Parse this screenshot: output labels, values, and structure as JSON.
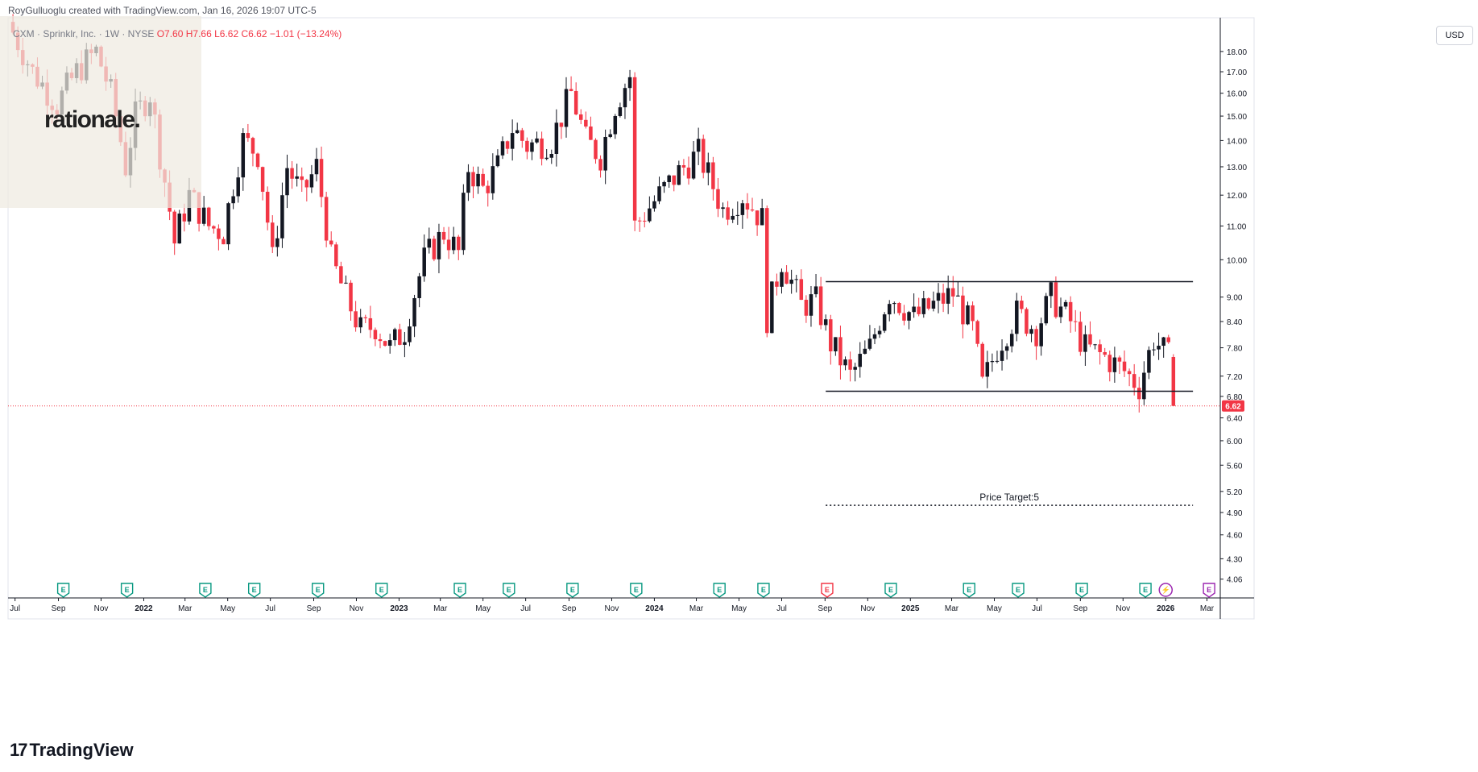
{
  "header": {
    "created_by": "RoyGulluoglu created with TradingView.com, Jan 16, 2026 19:07 UTC-5"
  },
  "legend": {
    "symbol": "CXM · Sprinklr, Inc. · 1W · NYSE",
    "open": "O7.60",
    "high": "H7.66",
    "low": "L6.62",
    "close": "C6.62",
    "change": "−1.01 (−13.24%)"
  },
  "logo": {
    "text": "rationale."
  },
  "currency_button": "USD",
  "brand": {
    "mark": "17",
    "name": "TradingView"
  },
  "colors": {
    "up": "#131722",
    "down": "#f23645",
    "grid": "#f0f3fa",
    "axis_text": "#131722",
    "earnings_green": "#089981",
    "earnings_red": "#f23645",
    "dividend_purple": "#9c27b0"
  },
  "chart_data": {
    "type": "candlestick",
    "title": "CXM · Sprinklr, Inc. · 1W · NYSE",
    "timeframe": "1W",
    "scale": "log",
    "ylim": [
      3.85,
      19.8
    ],
    "y_ticks": [
      "4.06",
      "4.30",
      "4.60",
      "4.90",
      "5.20",
      "5.60",
      "6.00",
      "6.40",
      "6.80",
      "7.20",
      "7.80",
      "8.40",
      "9.00",
      "10.00",
      "11.00",
      "12.00",
      "13.00",
      "14.00",
      "15.00",
      "16.00",
      "17.00",
      "18.00"
    ],
    "x_ticks": [
      {
        "label": "Jul",
        "date": "2021-07-01"
      },
      {
        "label": "Sep",
        "date": "2021-09-01"
      },
      {
        "label": "Nov",
        "date": "2021-11-01"
      },
      {
        "label": "2022",
        "date": "2022-01-01",
        "bold": true
      },
      {
        "label": "Mar",
        "date": "2022-03-01"
      },
      {
        "label": "May",
        "date": "2022-05-01"
      },
      {
        "label": "Jul",
        "date": "2022-07-01"
      },
      {
        "label": "Sep",
        "date": "2022-09-01"
      },
      {
        "label": "Nov",
        "date": "2022-11-01"
      },
      {
        "label": "2023",
        "date": "2023-01-01",
        "bold": true
      },
      {
        "label": "Mar",
        "date": "2023-03-01"
      },
      {
        "label": "May",
        "date": "2023-05-01"
      },
      {
        "label": "Jul",
        "date": "2023-07-01"
      },
      {
        "label": "Sep",
        "date": "2023-09-01"
      },
      {
        "label": "Nov",
        "date": "2023-11-01"
      },
      {
        "label": "2024",
        "date": "2024-01-01",
        "bold": true
      },
      {
        "label": "Mar",
        "date": "2024-03-01"
      },
      {
        "label": "May",
        "date": "2024-05-01"
      },
      {
        "label": "Jul",
        "date": "2024-07-01"
      },
      {
        "label": "Sep",
        "date": "2024-09-01"
      },
      {
        "label": "Nov",
        "date": "2024-11-01"
      },
      {
        "label": "2025",
        "date": "2025-01-01",
        "bold": true
      },
      {
        "label": "Mar",
        "date": "2025-03-01"
      },
      {
        "label": "May",
        "date": "2025-05-01"
      },
      {
        "label": "Jul",
        "date": "2025-07-01"
      },
      {
        "label": "Sep",
        "date": "2025-09-01"
      },
      {
        "label": "Nov",
        "date": "2025-11-01"
      },
      {
        "label": "2026",
        "date": "2026-01-01",
        "bold": true
      },
      {
        "label": "Mar",
        "date": "2026-03-01"
      }
    ],
    "last_price": 6.62,
    "last_price_label": "6.62",
    "horizontal_lines": [
      {
        "name": "range-top",
        "value": 9.4,
        "from": "2024-09-02",
        "to": "2026-02-09",
        "style": "solid"
      },
      {
        "name": "range-bottom",
        "value": 6.9,
        "from": "2024-09-02",
        "to": "2026-02-09",
        "style": "solid"
      },
      {
        "name": "price-target",
        "value": 5.0,
        "from": "2024-09-02",
        "to": "2026-02-09",
        "style": "dotted",
        "label": "Price Target:5"
      }
    ],
    "events": [
      {
        "type": "earnings",
        "date": "2021-09-08",
        "color": "green",
        "glyph": "E"
      },
      {
        "type": "earnings",
        "date": "2021-12-08",
        "color": "green",
        "glyph": "E"
      },
      {
        "type": "earnings",
        "date": "2022-03-30",
        "color": "green",
        "glyph": "E"
      },
      {
        "type": "earnings",
        "date": "2022-06-08",
        "color": "green",
        "glyph": "E"
      },
      {
        "type": "earnings",
        "date": "2022-09-07",
        "color": "green",
        "glyph": "E"
      },
      {
        "type": "earnings",
        "date": "2022-12-07",
        "color": "green",
        "glyph": "E"
      },
      {
        "type": "earnings",
        "date": "2023-03-29",
        "color": "green",
        "glyph": "E"
      },
      {
        "type": "earnings",
        "date": "2023-06-07",
        "color": "green",
        "glyph": "E"
      },
      {
        "type": "earnings",
        "date": "2023-09-06",
        "color": "green",
        "glyph": "E"
      },
      {
        "type": "earnings",
        "date": "2023-12-06",
        "color": "green",
        "glyph": "E"
      },
      {
        "type": "earnings",
        "date": "2024-04-03",
        "color": "green",
        "glyph": "E"
      },
      {
        "type": "earnings",
        "date": "2024-06-05",
        "color": "green",
        "glyph": "E"
      },
      {
        "type": "earnings",
        "date": "2024-09-04",
        "color": "red",
        "glyph": "E"
      },
      {
        "type": "earnings",
        "date": "2024-12-04",
        "color": "green",
        "glyph": "E"
      },
      {
        "type": "earnings",
        "date": "2025-03-26",
        "color": "green",
        "glyph": "E"
      },
      {
        "type": "earnings",
        "date": "2025-06-04",
        "color": "green",
        "glyph": "E"
      },
      {
        "type": "earnings",
        "date": "2025-09-03",
        "color": "green",
        "glyph": "E"
      },
      {
        "type": "earnings",
        "date": "2025-12-03",
        "color": "green",
        "glyph": "E"
      },
      {
        "type": "dividend",
        "date": "2026-01-01",
        "color": "purple",
        "glyph": "⚡"
      },
      {
        "type": "earnings",
        "date": "2026-03-04",
        "color": "purple",
        "glyph": "E"
      }
    ],
    "anchors": [
      {
        "date": "2021-06-28",
        "close": 19.0
      },
      {
        "date": "2021-07-26",
        "close": 17.0
      },
      {
        "date": "2021-08-30",
        "close": 15.5
      },
      {
        "date": "2021-09-27",
        "close": 17.0
      },
      {
        "date": "2021-10-25",
        "close": 18.0
      },
      {
        "date": "2021-11-15",
        "close": 16.0
      },
      {
        "date": "2021-12-06",
        "close": 13.0
      },
      {
        "date": "2021-12-20",
        "close": 15.0
      },
      {
        "date": "2022-01-10",
        "close": 16.0
      },
      {
        "date": "2022-01-24",
        "close": 13.5
      },
      {
        "date": "2022-02-14",
        "close": 10.5
      },
      {
        "date": "2022-03-07",
        "close": 12.0
      },
      {
        "date": "2022-04-04",
        "close": 11.0
      },
      {
        "date": "2022-04-25",
        "close": 10.8
      },
      {
        "date": "2022-05-23",
        "close": 14.0
      },
      {
        "date": "2022-06-13",
        "close": 13.5
      },
      {
        "date": "2022-07-04",
        "close": 10.0
      },
      {
        "date": "2022-07-25",
        "close": 13.0
      },
      {
        "date": "2022-08-15",
        "close": 12.0
      },
      {
        "date": "2022-09-05",
        "close": 13.0
      },
      {
        "date": "2022-09-26",
        "close": 10.0
      },
      {
        "date": "2022-10-17",
        "close": 9.0
      },
      {
        "date": "2022-11-07",
        "close": 8.2
      },
      {
        "date": "2022-11-28",
        "close": 8.3
      },
      {
        "date": "2022-12-19",
        "close": 7.8
      },
      {
        "date": "2023-01-09",
        "close": 8.2
      },
      {
        "date": "2023-02-06",
        "close": 10.0
      },
      {
        "date": "2023-03-06",
        "close": 10.8
      },
      {
        "date": "2023-03-27",
        "close": 10.2
      },
      {
        "date": "2023-04-10",
        "close": 13.0
      },
      {
        "date": "2023-05-01",
        "close": 12.2
      },
      {
        "date": "2023-05-22",
        "close": 13.0
      },
      {
        "date": "2023-06-12",
        "close": 14.5
      },
      {
        "date": "2023-07-03",
        "close": 13.8
      },
      {
        "date": "2023-08-07",
        "close": 14.0
      },
      {
        "date": "2023-09-04",
        "close": 16.0
      },
      {
        "date": "2023-09-25",
        "close": 14.0
      },
      {
        "date": "2023-10-16",
        "close": 13.4
      },
      {
        "date": "2023-11-06",
        "close": 15.5
      },
      {
        "date": "2023-11-27",
        "close": 16.8
      },
      {
        "date": "2023-12-04",
        "close": 11.0
      },
      {
        "date": "2024-01-08",
        "close": 12.0
      },
      {
        "date": "2024-02-05",
        "close": 12.8
      },
      {
        "date": "2024-03-04",
        "close": 13.5
      },
      {
        "date": "2024-04-08",
        "close": 11.5
      },
      {
        "date": "2024-05-06",
        "close": 12.0
      },
      {
        "date": "2024-06-03",
        "close": 11.2
      },
      {
        "date": "2024-06-10",
        "close": 8.5
      },
      {
        "date": "2024-07-01",
        "close": 10.0
      },
      {
        "date": "2024-07-29",
        "close": 8.8
      },
      {
        "date": "2024-08-19",
        "close": 8.9
      },
      {
        "date": "2024-09-09",
        "close": 7.9
      },
      {
        "date": "2024-10-07",
        "close": 7.2
      },
      {
        "date": "2024-11-04",
        "close": 7.8
      },
      {
        "date": "2024-12-02",
        "close": 9.1
      },
      {
        "date": "2025-01-06",
        "close": 8.5
      },
      {
        "date": "2025-02-03",
        "close": 8.8
      },
      {
        "date": "2025-03-03",
        "close": 9.1
      },
      {
        "date": "2025-03-31",
        "close": 8.2
      },
      {
        "date": "2025-04-14",
        "close": 7.0
      },
      {
        "date": "2025-05-05",
        "close": 7.8
      },
      {
        "date": "2025-06-02",
        "close": 8.6
      },
      {
        "date": "2025-06-30",
        "close": 8.2
      },
      {
        "date": "2025-07-21",
        "close": 9.0
      },
      {
        "date": "2025-08-18",
        "close": 8.4
      },
      {
        "date": "2025-09-08",
        "close": 7.8
      },
      {
        "date": "2025-10-06",
        "close": 7.6
      },
      {
        "date": "2025-11-03",
        "close": 7.3
      },
      {
        "date": "2025-11-24",
        "close": 7.0
      },
      {
        "date": "2025-12-15",
        "close": 8.0
      },
      {
        "date": "2026-01-05",
        "close": 7.6
      },
      {
        "date": "2026-01-12",
        "close": 6.62
      }
    ],
    "final_candle": {
      "date": "2026-01-12",
      "open": 7.6,
      "high": 7.66,
      "low": 6.62,
      "close": 6.62
    }
  }
}
